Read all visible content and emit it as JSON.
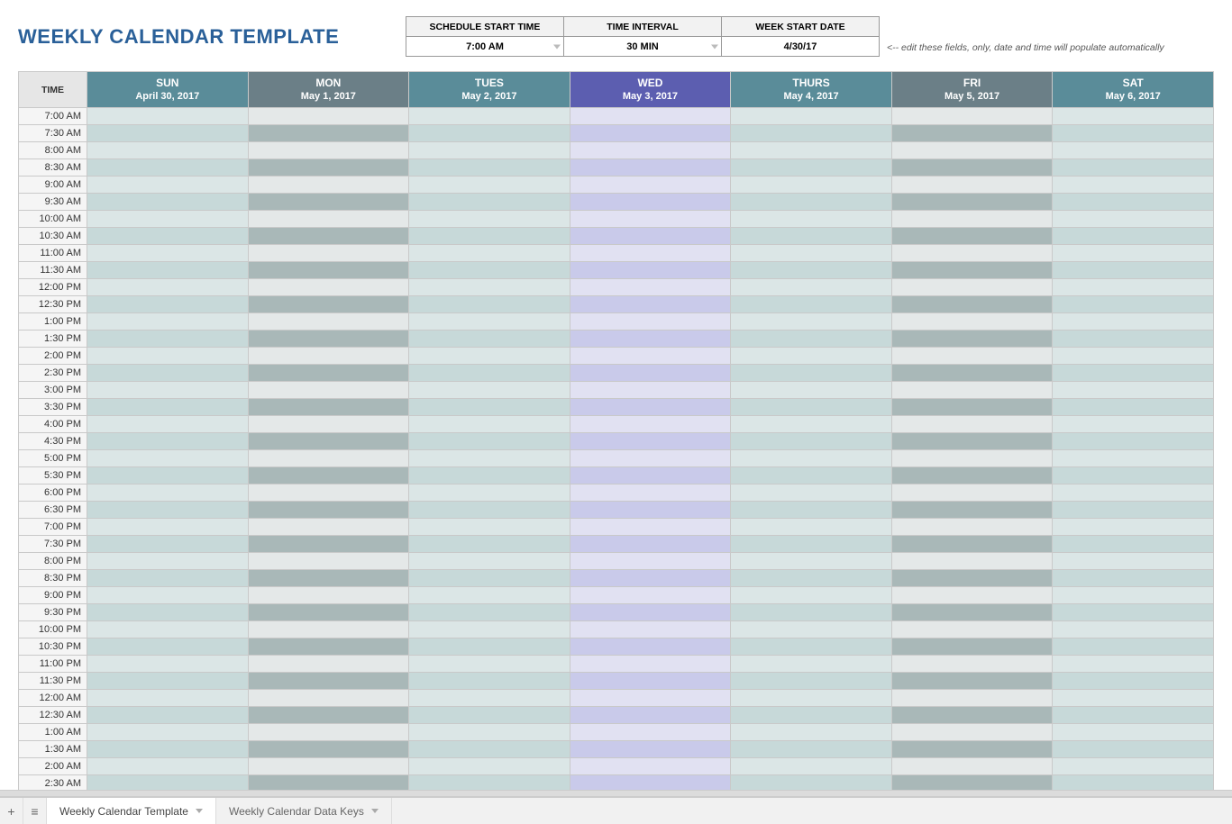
{
  "title": "WEEKLY CALENDAR TEMPLATE",
  "settings": {
    "headers": [
      "SCHEDULE START TIME",
      "TIME INTERVAL",
      "WEEK START DATE"
    ],
    "values": [
      "7:00 AM",
      "30 MIN",
      "4/30/17"
    ],
    "dropdown_on": [
      true,
      true,
      false
    ]
  },
  "hint": "<-- edit these fields, only, date and time will populate automatically",
  "corner_label": "TIME",
  "days": [
    {
      "name": "SUN",
      "date": "April 30, 2017",
      "header_bg": "#5a8c99",
      "even_bg": "#dbe6e6",
      "odd_bg": "#c7d9d9"
    },
    {
      "name": "MON",
      "date": "May 1, 2017",
      "header_bg": "#6b7f87",
      "even_bg": "#e4e8e8",
      "odd_bg": "#a9b8b8"
    },
    {
      "name": "TUES",
      "date": "May 2, 2017",
      "header_bg": "#5a8c99",
      "even_bg": "#dbe6e6",
      "odd_bg": "#c7d9d9"
    },
    {
      "name": "WED",
      "date": "May 3, 2017",
      "header_bg": "#5c5eb0",
      "even_bg": "#e1e1f2",
      "odd_bg": "#c9caea"
    },
    {
      "name": "THURS",
      "date": "May 4, 2017",
      "header_bg": "#5a8c99",
      "even_bg": "#dbe6e6",
      "odd_bg": "#c7d9d9"
    },
    {
      "name": "FRI",
      "date": "May 5, 2017",
      "header_bg": "#6b7f87",
      "even_bg": "#e4e8e8",
      "odd_bg": "#a9b8b8"
    },
    {
      "name": "SAT",
      "date": "May 6, 2017",
      "header_bg": "#5a8c99",
      "even_bg": "#dbe6e6",
      "odd_bg": "#c7d9d9"
    }
  ],
  "times": [
    "7:00 AM",
    "7:30 AM",
    "8:00 AM",
    "8:30 AM",
    "9:00 AM",
    "9:30 AM",
    "10:00 AM",
    "10:30 AM",
    "11:00 AM",
    "11:30 AM",
    "12:00 PM",
    "12:30 PM",
    "1:00 PM",
    "1:30 PM",
    "2:00 PM",
    "2:30 PM",
    "3:00 PM",
    "3:30 PM",
    "4:00 PM",
    "4:30 PM",
    "5:00 PM",
    "5:30 PM",
    "6:00 PM",
    "6:30 PM",
    "7:00 PM",
    "7:30 PM",
    "8:00 PM",
    "8:30 PM",
    "9:00 PM",
    "9:30 PM",
    "10:00 PM",
    "10:30 PM",
    "11:00 PM",
    "11:30 PM",
    "12:00 AM",
    "12:30 AM",
    "1:00 AM",
    "1:30 AM",
    "2:00 AM",
    "2:30 AM"
  ],
  "tabs": {
    "add_label": "+",
    "list_label": "≡",
    "items": [
      {
        "label": "Weekly Calendar Template",
        "active": true
      },
      {
        "label": "Weekly Calendar Data Keys",
        "active": false
      }
    ]
  },
  "style": {
    "title_color": "#2a6099",
    "time_col_bg": "#f5f5f5",
    "grid_border": "#c9c9c9"
  }
}
